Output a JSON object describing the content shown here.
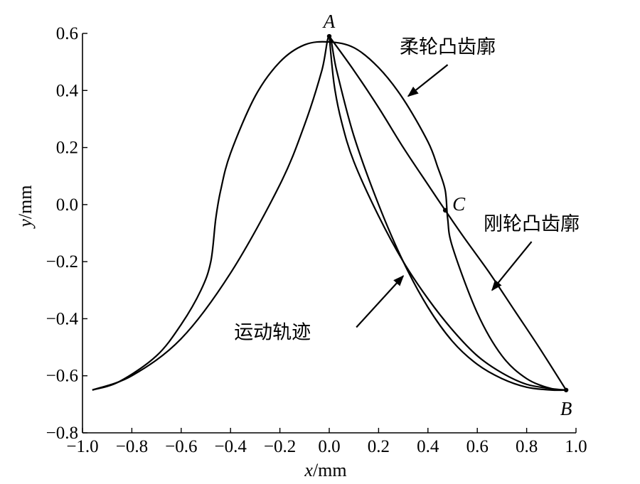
{
  "chart_data": {
    "type": "line",
    "xlabel": {
      "var": "x",
      "unit": "/mm"
    },
    "ylabel": {
      "var": "y",
      "unit": "/mm"
    },
    "xlim": [
      -1.0,
      1.0
    ],
    "ylim": [
      -0.8,
      0.6
    ],
    "x_ticks": [
      -1.0,
      -0.8,
      -0.6,
      -0.4,
      -0.2,
      0.0,
      0.2,
      0.4,
      0.6,
      0.8,
      1.0
    ],
    "x_tick_labels": [
      "−1.0",
      "−0.8",
      "−0.6",
      "−0.4",
      "−0.2",
      "0.0",
      "0.2",
      "0.4",
      "0.6",
      "0.8",
      "1.0"
    ],
    "y_ticks": [
      0.6,
      0.4,
      0.2,
      0.0,
      -0.2,
      -0.4,
      -0.6,
      -0.8
    ],
    "y_tick_labels": [
      "0.6",
      "0.4",
      "0.2",
      "0.0",
      "−0.2",
      "−0.4",
      "−0.6",
      "−0.8"
    ],
    "grid": false,
    "series": [
      {
        "name": "柔轮凸齿廓",
        "x": [
          -0.96,
          -0.85,
          -0.7,
          -0.6,
          -0.52,
          -0.48,
          -0.46,
          -0.44,
          -0.4,
          -0.3,
          -0.2,
          -0.1,
          0.0,
          0.1,
          0.2,
          0.3,
          0.4,
          0.44,
          0.47,
          0.48,
          0.5,
          0.6,
          0.7,
          0.8,
          0.9,
          0.96
        ],
        "y": [
          -0.65,
          -0.62,
          -0.53,
          -0.42,
          -0.3,
          -0.2,
          -0.05,
          0.05,
          0.18,
          0.38,
          0.5,
          0.56,
          0.57,
          0.55,
          0.48,
          0.37,
          0.22,
          0.13,
          0.05,
          -0.05,
          -0.15,
          -0.38,
          -0.53,
          -0.61,
          -0.645,
          -0.65
        ]
      },
      {
        "name": "运动轨迹",
        "x": [
          -0.96,
          -0.8,
          -0.6,
          -0.4,
          -0.2,
          -0.1,
          -0.03,
          0.0,
          0.03,
          0.1,
          0.2,
          0.3,
          0.4,
          0.5,
          0.6,
          0.7,
          0.8,
          0.9,
          0.96
        ],
        "y": [
          -0.65,
          -0.6,
          -0.47,
          -0.24,
          0.07,
          0.28,
          0.47,
          0.59,
          0.47,
          0.24,
          0.0,
          -0.2,
          -0.36,
          -0.48,
          -0.56,
          -0.61,
          -0.64,
          -0.65,
          -0.65
        ]
      },
      {
        "name": "刚轮凸齿廓",
        "x": [
          0.0,
          0.1,
          0.2,
          0.3,
          0.4,
          0.47,
          0.55,
          0.65,
          0.75,
          0.85,
          0.96
        ],
        "y": [
          0.59,
          0.47,
          0.34,
          0.2,
          0.07,
          -0.02,
          -0.12,
          -0.24,
          -0.37,
          -0.5,
          -0.65
        ]
      },
      {
        "name": "",
        "x": [
          0.0,
          0.02,
          0.05,
          0.1,
          0.2,
          0.3,
          0.4,
          0.5,
          0.6,
          0.7,
          0.8,
          0.9,
          0.96
        ],
        "y": [
          0.59,
          0.42,
          0.29,
          0.15,
          -0.04,
          -0.2,
          -0.33,
          -0.44,
          -0.53,
          -0.59,
          -0.63,
          -0.645,
          -0.65
        ]
      }
    ],
    "points": [
      {
        "label": "A",
        "x": 0.0,
        "y": 0.59,
        "marker": true,
        "anchor": "above"
      },
      {
        "label": "B",
        "x": 0.96,
        "y": -0.65,
        "marker": true,
        "anchor": "below"
      },
      {
        "label": "C",
        "x": 0.47,
        "y": -0.02,
        "marker": true,
        "anchor": "right"
      }
    ],
    "annotations": [
      {
        "text": "柔轮凸齿廓",
        "text_x": 0.48,
        "text_y": 0.53,
        "arrow_from": [
          0.48,
          0.49
        ],
        "arrow_to": [
          0.32,
          0.38
        ]
      },
      {
        "text": "刚轮凸齿廓",
        "text_x": 0.82,
        "text_y": -0.09,
        "arrow_from": [
          0.82,
          -0.13
        ],
        "arrow_to": [
          0.66,
          -0.3
        ]
      },
      {
        "text": "运动轨迹",
        "text_x": -0.23,
        "text_y": -0.47,
        "arrow_from": [
          0.11,
          -0.43
        ],
        "arrow_to": [
          0.3,
          -0.25
        ]
      }
    ]
  }
}
